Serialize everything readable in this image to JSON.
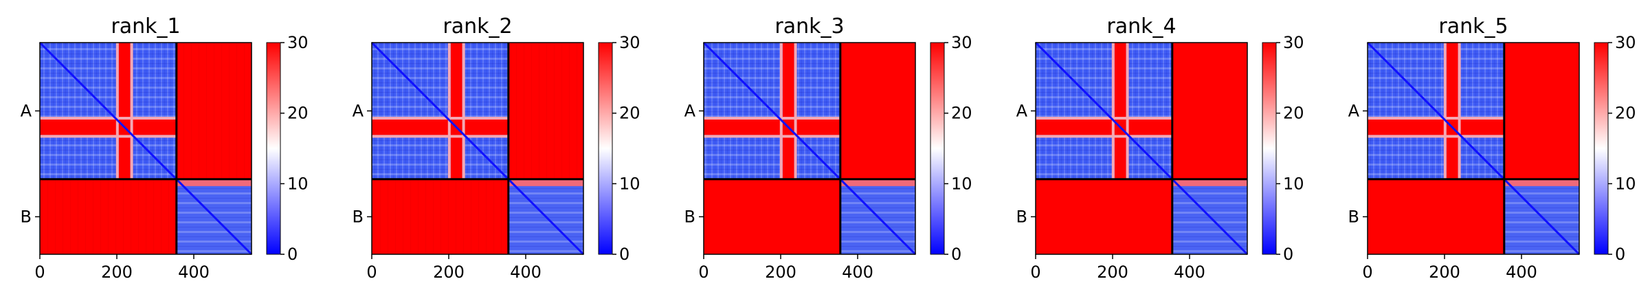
{
  "chart_data": [
    {
      "type": "heatmap",
      "title": "rank_1",
      "chains": [
        "A",
        "B"
      ],
      "xticks": [
        0,
        200,
        400
      ],
      "xlim": [
        0,
        550
      ],
      "chain_boundary": 355,
      "colorbar": {
        "ticks": [
          0,
          10,
          20,
          30
        ],
        "range": [
          0,
          30
        ],
        "colors": [
          "#0000ff",
          "#ffffff",
          "#ff0000"
        ]
      }
    },
    {
      "type": "heatmap",
      "title": "rank_2",
      "chains": [
        "A",
        "B"
      ],
      "xticks": [
        0,
        200,
        400
      ],
      "xlim": [
        0,
        550
      ],
      "chain_boundary": 355,
      "colorbar": {
        "ticks": [
          0,
          10,
          20,
          30
        ],
        "range": [
          0,
          30
        ],
        "colors": [
          "#0000ff",
          "#ffffff",
          "#ff0000"
        ]
      }
    },
    {
      "type": "heatmap",
      "title": "rank_3",
      "chains": [
        "A",
        "B"
      ],
      "xticks": [
        0,
        200,
        400
      ],
      "xlim": [
        0,
        550
      ],
      "chain_boundary": 355,
      "colorbar": {
        "ticks": [
          0,
          10,
          20,
          30
        ],
        "range": [
          0,
          30
        ],
        "colors": [
          "#0000ff",
          "#ffffff",
          "#ff0000"
        ]
      }
    },
    {
      "type": "heatmap",
      "title": "rank_4",
      "chains": [
        "A",
        "B"
      ],
      "xticks": [
        0,
        200,
        400
      ],
      "xlim": [
        0,
        550
      ],
      "chain_boundary": 355,
      "colorbar": {
        "ticks": [
          0,
          10,
          20,
          30
        ],
        "range": [
          0,
          30
        ],
        "colors": [
          "#0000ff",
          "#ffffff",
          "#ff0000"
        ]
      }
    },
    {
      "type": "heatmap",
      "title": "rank_5",
      "chains": [
        "A",
        "B"
      ],
      "xticks": [
        0,
        200,
        400
      ],
      "xlim": [
        0,
        550
      ],
      "chain_boundary": 355,
      "colorbar": {
        "ticks": [
          0,
          10,
          20,
          30
        ],
        "range": [
          0,
          30
        ],
        "colors": [
          "#0000ff",
          "#ffffff",
          "#ff0000"
        ]
      }
    }
  ]
}
